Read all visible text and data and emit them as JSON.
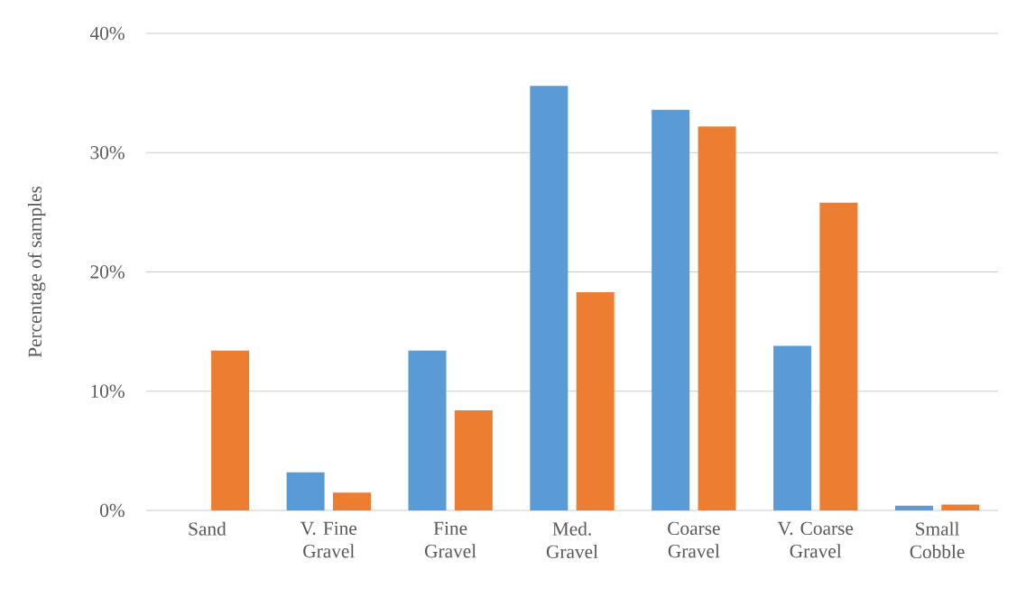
{
  "chart_data": {
    "type": "bar",
    "ylabel": "Percentage of samples",
    "categories": [
      "Sand",
      "V. Fine Gravel",
      "Fine Gravel",
      "Med. Gravel",
      "Coarse Gravel",
      "V. Coarse Gravel",
      "Small Cobble"
    ],
    "series": [
      {
        "color": "#5b9bd5",
        "values": [
          0,
          3.2,
          13.4,
          35.6,
          33.6,
          13.8,
          0.4
        ]
      },
      {
        "color": "#ed7d31",
        "values": [
          13.4,
          1.5,
          8.4,
          18.3,
          32.2,
          25.8,
          0.5
        ]
      }
    ],
    "ylim": [
      0,
      40
    ],
    "yticks": [
      {
        "value": 0,
        "label": "0%"
      },
      {
        "value": 10,
        "label": "10%"
      },
      {
        "value": 20,
        "label": "20%"
      },
      {
        "value": 30,
        "label": "30%"
      },
      {
        "value": 40,
        "label": "40%"
      }
    ],
    "grid": "y"
  }
}
